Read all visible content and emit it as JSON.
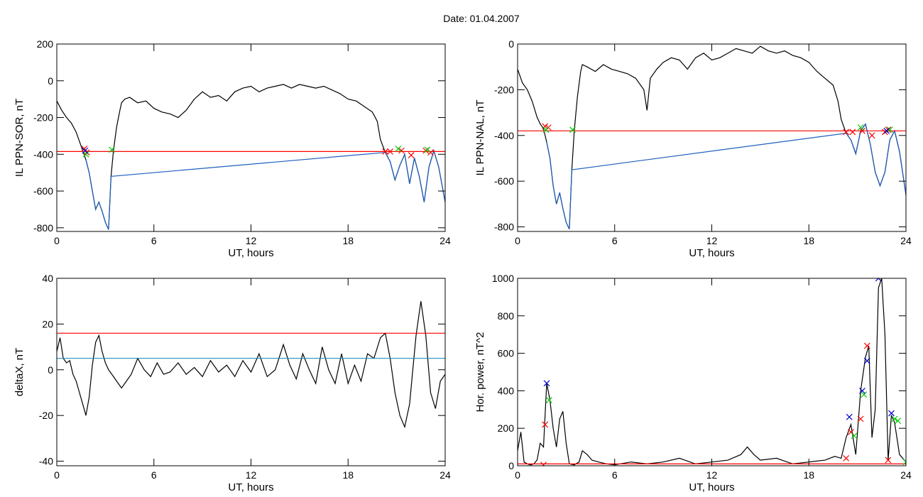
{
  "figure": {
    "title": "Date:  01.04.2007"
  },
  "chart_data": [
    {
      "id": "sor",
      "type": "line",
      "xlabel": "UT, hours",
      "ylabel": "IL PPN-SOR, nT",
      "xlim": [
        0,
        24
      ],
      "ylim": [
        -820,
        200
      ],
      "xticks": [
        0,
        6,
        12,
        18,
        24
      ],
      "yticks": [
        -800,
        -600,
        -400,
        -200,
        0,
        200
      ],
      "series": [
        {
          "color": "#000000",
          "x": [
            0,
            0.3,
            0.6,
            0.9,
            1.2,
            1.4,
            1.6,
            1.8,
            2.0,
            2.2,
            2.4,
            2.6,
            2.8,
            3.0,
            3.2,
            3.35,
            3.5,
            3.7,
            3.9,
            4.0,
            4.2,
            4.5,
            5.0,
            5.5,
            6.0,
            6.5,
            7.0,
            7.5,
            8.0,
            8.5,
            9.0,
            9.5,
            10.0,
            10.5,
            11.0,
            11.5,
            12.0,
            12.5,
            13.0,
            13.5,
            14.0,
            14.5,
            15.0,
            15.5,
            16.0,
            16.5,
            17.0,
            17.5,
            18.0,
            18.5,
            19.0,
            19.5,
            19.8,
            20.0,
            20.3,
            20.6,
            20.9,
            21.2,
            21.5,
            21.8,
            22.1,
            22.4,
            22.7,
            23.0,
            23.3,
            23.6,
            24.0
          ],
          "y": [
            -110,
            -160,
            -200,
            -230,
            -280,
            -330,
            -380,
            -430,
            -500,
            -600,
            -700,
            -660,
            -710,
            -770,
            -810,
            -520,
            -380,
            -250,
            -160,
            -120,
            -100,
            -90,
            -120,
            -110,
            -150,
            -170,
            -180,
            -200,
            -160,
            -100,
            -60,
            -90,
            -80,
            -110,
            -60,
            -40,
            -30,
            -60,
            -40,
            -30,
            -20,
            -40,
            -20,
            -30,
            -40,
            -30,
            -50,
            -70,
            -100,
            -110,
            -140,
            -170,
            -220,
            -320,
            -390,
            -440,
            -540,
            -460,
            -400,
            -560,
            -420,
            -520,
            -660,
            -470,
            -380,
            -470,
            -660
          ]
        },
        {
          "color": "#1f5fbf",
          "x": [
            1.8,
            2.0,
            2.2,
            2.4,
            2.6,
            2.8,
            3.0,
            3.2,
            3.35,
            20.3,
            20.6,
            20.9,
            21.2,
            21.5,
            21.8,
            22.1,
            22.4,
            22.7,
            23.0,
            23.3,
            23.6,
            24.0
          ],
          "y": [
            -430,
            -500,
            -600,
            -700,
            -660,
            -710,
            -770,
            -810,
            -520,
            -390,
            -440,
            -540,
            -460,
            -400,
            -560,
            -420,
            -520,
            -660,
            -470,
            -380,
            -470,
            -660
          ]
        },
        {
          "color": "#ff0000",
          "x": [
            0,
            24
          ],
          "y": [
            -385,
            -385
          ]
        }
      ],
      "markers": [
        {
          "color": "#ff0000",
          "x": [
            1.7,
            1.85,
            20.3,
            20.6,
            21.3,
            21.9,
            22.8,
            23.1
          ],
          "y": [
            -370,
            -390,
            -385,
            -385,
            -380,
            -405,
            -380,
            -390
          ]
        },
        {
          "color": "#00cc00",
          "x": [
            1.8,
            3.4,
            21.1,
            22.9
          ],
          "y": [
            -400,
            -375,
            -370,
            -375
          ]
        },
        {
          "color": "#0000cc",
          "x": [
            1.75
          ],
          "y": [
            -380
          ]
        }
      ]
    },
    {
      "id": "nal",
      "type": "line",
      "xlabel": "UT, hours",
      "ylabel": "IL PPN-NAL, nT",
      "xlim": [
        0,
        24
      ],
      "ylim": [
        -820,
        0
      ],
      "xticks": [
        0,
        6,
        12,
        18,
        24
      ],
      "yticks": [
        -800,
        -600,
        -400,
        -200,
        0
      ],
      "series": [
        {
          "color": "#000000",
          "x": [
            0,
            0.3,
            0.6,
            0.9,
            1.2,
            1.4,
            1.6,
            1.8,
            2.0,
            2.2,
            2.4,
            2.6,
            2.8,
            3.0,
            3.2,
            3.35,
            3.5,
            3.7,
            3.9,
            4.0,
            4.3,
            4.8,
            5.3,
            5.8,
            6.3,
            6.8,
            7.3,
            7.8,
            8.0,
            8.2,
            8.6,
            9.0,
            9.5,
            10.0,
            10.5,
            11.0,
            11.5,
            12.0,
            12.5,
            13.0,
            13.5,
            14.0,
            14.5,
            15.0,
            15.5,
            16.0,
            16.5,
            17.0,
            17.5,
            18.0,
            18.5,
            19.0,
            19.5,
            19.8,
            20.0,
            20.3,
            20.6,
            20.9,
            21.2,
            21.5,
            21.8,
            22.1,
            22.4,
            22.7,
            23.0,
            23.3,
            23.6,
            24.0
          ],
          "y": [
            -110,
            -170,
            -200,
            -250,
            -320,
            -350,
            -370,
            -430,
            -500,
            -620,
            -700,
            -650,
            -720,
            -780,
            -810,
            -550,
            -380,
            -230,
            -120,
            -90,
            -100,
            -120,
            -90,
            -110,
            -120,
            -130,
            -150,
            -200,
            -290,
            -150,
            -110,
            -80,
            -60,
            -70,
            -110,
            -60,
            -40,
            -70,
            -60,
            -40,
            -20,
            -30,
            -40,
            -10,
            -30,
            -40,
            -30,
            -50,
            -60,
            -80,
            -120,
            -150,
            -180,
            -250,
            -330,
            -390,
            -420,
            -480,
            -380,
            -350,
            -440,
            -560,
            -620,
            -560,
            -420,
            -380,
            -470,
            -660
          ]
        },
        {
          "color": "#1f5fbf",
          "x": [
            1.8,
            2.0,
            2.2,
            2.4,
            2.6,
            2.8,
            3.0,
            3.2,
            3.35,
            20.3,
            20.6,
            20.9,
            21.2,
            21.5,
            21.8,
            22.1,
            22.4,
            22.7,
            23.0,
            23.3,
            23.6,
            24.0
          ],
          "y": [
            -430,
            -500,
            -620,
            -700,
            -650,
            -720,
            -780,
            -810,
            -550,
            -390,
            -420,
            -480,
            -380,
            -350,
            -440,
            -560,
            -620,
            -560,
            -420,
            -380,
            -470,
            -660
          ]
        },
        {
          "color": "#ff0000",
          "x": [
            0,
            24
          ],
          "y": [
            -380,
            -380
          ]
        }
      ],
      "markers": [
        {
          "color": "#ff0000",
          "x": [
            1.7,
            1.9,
            20.3,
            20.7,
            21.3,
            21.9,
            22.7,
            22.9
          ],
          "y": [
            -360,
            -365,
            -385,
            -385,
            -380,
            -400,
            -385,
            -375
          ]
        },
        {
          "color": "#00cc00",
          "x": [
            1.75,
            3.4,
            21.2,
            23.0
          ],
          "y": [
            -375,
            -375,
            -365,
            -375
          ]
        },
        {
          "color": "#0000cc",
          "x": [
            22.8
          ],
          "y": [
            -380
          ]
        }
      ]
    },
    {
      "id": "deltax",
      "type": "line",
      "xlabel": "UT, hours",
      "ylabel": "deltaX, nT",
      "xlim": [
        0,
        24
      ],
      "ylim": [
        -42,
        40
      ],
      "xticks": [
        0,
        6,
        12,
        18,
        24
      ],
      "yticks": [
        -40,
        -20,
        0,
        20,
        40
      ],
      "series": [
        {
          "color": "#000000",
          "x": [
            0,
            0.2,
            0.4,
            0.6,
            0.8,
            1.0,
            1.2,
            1.4,
            1.6,
            1.8,
            2.0,
            2.2,
            2.4,
            2.6,
            2.8,
            3.0,
            3.2,
            3.5,
            3.8,
            4.0,
            4.3,
            4.6,
            5.0,
            5.4,
            5.8,
            6.2,
            6.6,
            7.0,
            7.5,
            8.0,
            8.5,
            9.0,
            9.5,
            10.0,
            10.5,
            11.0,
            11.5,
            12.0,
            12.5,
            13.0,
            13.5,
            14.0,
            14.4,
            14.8,
            15.2,
            15.6,
            16.0,
            16.4,
            16.8,
            17.2,
            17.6,
            18.0,
            18.4,
            18.8,
            19.2,
            19.6,
            20.0,
            20.3,
            20.6,
            20.9,
            21.2,
            21.5,
            21.8,
            22.0,
            22.2,
            22.5,
            22.8,
            23.1,
            23.4,
            23.7,
            24.0
          ],
          "y": [
            8,
            14,
            5,
            3,
            4,
            -2,
            -5,
            -10,
            -15,
            -20,
            -12,
            2,
            12,
            15,
            8,
            3,
            0,
            -3,
            -6,
            -8,
            -5,
            -2,
            5,
            0,
            -3,
            3,
            -2,
            -1,
            3,
            -2,
            1,
            -3,
            4,
            -1,
            2,
            -3,
            4,
            -1,
            7,
            -3,
            0,
            11,
            2,
            -4,
            7,
            0,
            -6,
            10,
            0,
            -6,
            7,
            -6,
            2,
            -5,
            7,
            5,
            14,
            16,
            5,
            -10,
            -20,
            -25,
            -15,
            0,
            15,
            30,
            15,
            -10,
            -17,
            -5,
            -2
          ]
        },
        {
          "color": "#1f8fbf",
          "x": [
            0,
            24
          ],
          "y": [
            5,
            5
          ]
        },
        {
          "color": "#ff0000",
          "x": [
            0,
            24
          ],
          "y": [
            16,
            16
          ]
        }
      ],
      "markers": []
    },
    {
      "id": "hpower",
      "type": "line",
      "xlabel": "UT, hours",
      "ylabel": "Hor. power, nT^2",
      "xlim": [
        0,
        24
      ],
      "ylim": [
        0,
        1000
      ],
      "xticks": [
        0,
        6,
        12,
        18,
        24
      ],
      "yticks": [
        0,
        200,
        400,
        600,
        800,
        1000
      ],
      "series": [
        {
          "color": "#000000",
          "x": [
            0,
            0.2,
            0.4,
            0.6,
            0.8,
            1.0,
            1.2,
            1.4,
            1.6,
            1.8,
            2.0,
            2.2,
            2.4,
            2.6,
            2.8,
            3.0,
            3.2,
            3.5,
            3.8,
            4.0,
            4.3,
            4.6,
            5.0,
            5.5,
            6.0,
            7.0,
            8.0,
            9.0,
            10.0,
            11.0,
            12.0,
            13.0,
            13.8,
            14.2,
            14.6,
            15.0,
            16.0,
            17.0,
            18.0,
            19.0,
            19.6,
            20.0,
            20.3,
            20.6,
            20.9,
            21.2,
            21.5,
            21.7,
            21.9,
            22.1,
            22.3,
            22.5,
            22.7,
            22.9,
            23.1,
            23.3,
            23.6,
            24.0
          ],
          "y": [
            80,
            180,
            20,
            10,
            5,
            10,
            30,
            120,
            100,
            440,
            350,
            200,
            100,
            250,
            290,
            120,
            10,
            5,
            20,
            80,
            60,
            30,
            20,
            10,
            5,
            20,
            10,
            20,
            40,
            10,
            20,
            30,
            60,
            100,
            60,
            30,
            40,
            10,
            20,
            30,
            50,
            40,
            150,
            220,
            60,
            400,
            580,
            640,
            150,
            300,
            950,
            1000,
            700,
            30,
            270,
            230,
            60,
            20
          ]
        },
        {
          "color": "#ff0000",
          "x": [
            0,
            24
          ],
          "y": [
            10,
            10
          ]
        }
      ],
      "markers": [
        {
          "color": "#ff0000",
          "x": [
            1.6,
            1.7,
            20.3,
            20.6,
            21.2,
            21.6,
            22.9
          ],
          "y": [
            5,
            220,
            40,
            180,
            250,
            640,
            30
          ]
        },
        {
          "color": "#00cc00",
          "x": [
            1.95,
            20.8,
            21.4,
            23.3,
            23.5,
            24.0
          ],
          "y": [
            350,
            160,
            380,
            250,
            240,
            20
          ]
        },
        {
          "color": "#0000cc",
          "x": [
            1.8,
            20.5,
            21.3,
            21.6,
            22.3,
            23.1
          ],
          "y": [
            440,
            260,
            400,
            560,
            1000,
            280
          ]
        }
      ]
    }
  ]
}
